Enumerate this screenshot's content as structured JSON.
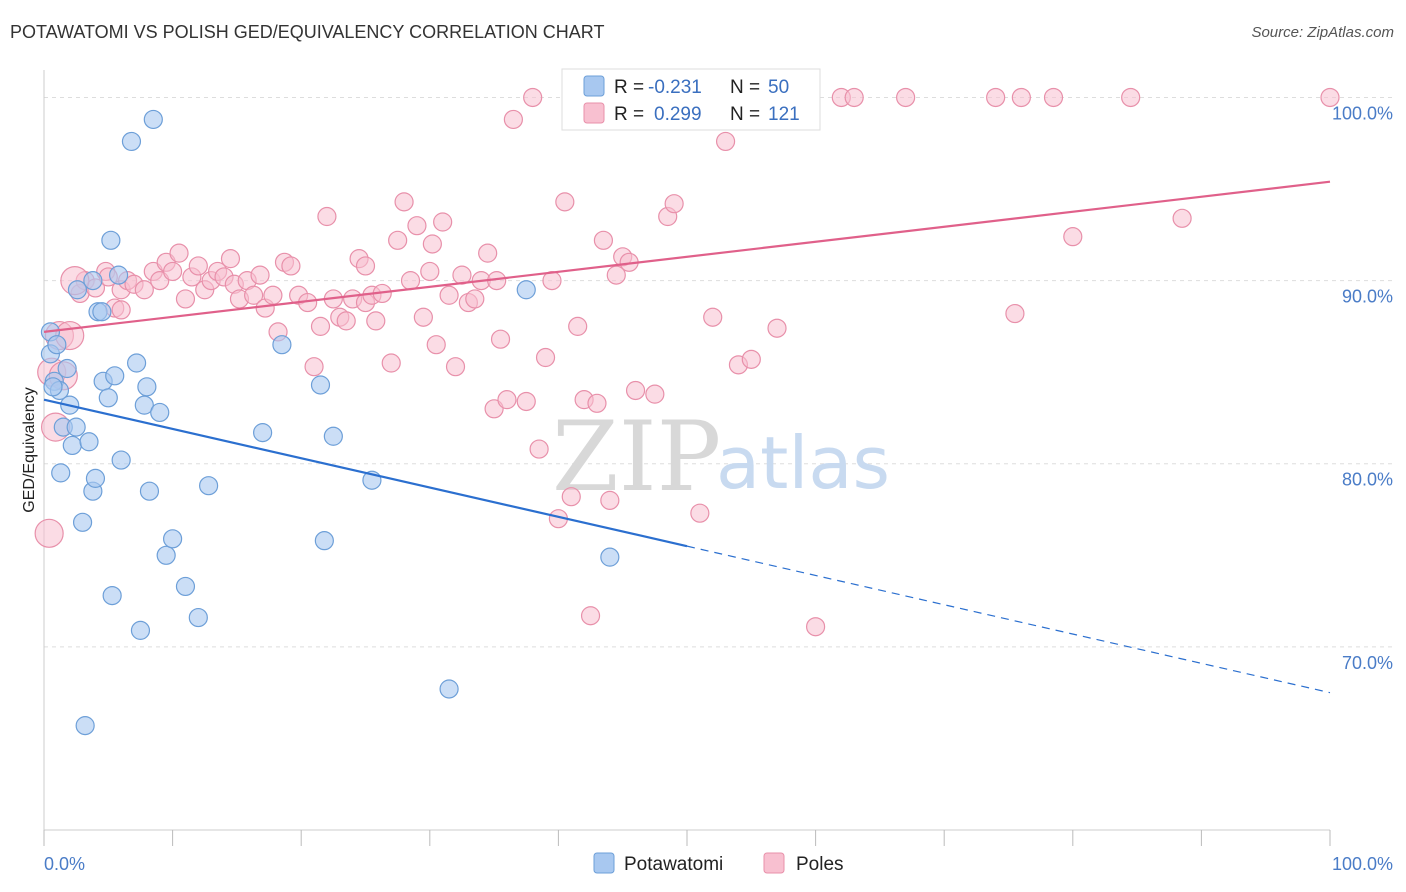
{
  "header": {
    "title": "POTAWATOMI VS POLISH GED/EQUIVALENCY CORRELATION CHART",
    "source": "Source: ZipAtlas.com"
  },
  "watermark": {
    "zip": "ZIP",
    "atlas": "atlas"
  },
  "legend": {
    "rows": [
      {
        "r_label": "R =",
        "r_value": "-0.231",
        "n_label": "N =",
        "n_value": "50",
        "color": "#a8c8f0",
        "stroke": "#6d9fd8"
      },
      {
        "r_label": "R =",
        "r_value": "0.299",
        "n_label": "N =",
        "n_value": "121",
        "color": "#f8c0d0",
        "stroke": "#e890aa"
      }
    ]
  },
  "bottom_legend": [
    {
      "label": "Potawatomi",
      "color": "#a8c8f0",
      "stroke": "#6d9fd8"
    },
    {
      "label": "Poles",
      "color": "#f8c0d0",
      "stroke": "#e890aa"
    }
  ],
  "chart_data": {
    "type": "scatter",
    "xlabel": "",
    "ylabel": "GED/Equivalency",
    "xlim": [
      0,
      100
    ],
    "ylim": [
      60,
      101.5
    ],
    "x_tick_labels": [
      "0.0%",
      "100.0%"
    ],
    "y_ticks": [
      100,
      90,
      80,
      70
    ],
    "y_tick_labels": [
      "100.0%",
      "90.0%",
      "80.0%",
      "70.0%"
    ],
    "grid": true,
    "legend_position": "top-center",
    "series": [
      {
        "name": "Potawatomi",
        "color": "#a8c8f0",
        "stroke": "#6d9fd8",
        "trend": {
          "x0": 0,
          "y0": 83.5,
          "x1": 50,
          "y1": 75.5,
          "dash_to_x": 100,
          "dash_to_y": 67.5,
          "color": "#2b6fcf"
        },
        "points": [
          [
            0.5,
            87.2
          ],
          [
            0.5,
            86.0
          ],
          [
            0.8,
            84.5
          ],
          [
            1.2,
            84.0
          ],
          [
            1.5,
            82.0
          ],
          [
            1.0,
            86.5
          ],
          [
            1.8,
            85.2
          ],
          [
            2.0,
            83.2
          ],
          [
            2.2,
            81.0
          ],
          [
            2.5,
            82.0
          ],
          [
            1.3,
            79.5
          ],
          [
            3.5,
            81.2
          ],
          [
            3.8,
            78.5
          ],
          [
            4.0,
            79.2
          ],
          [
            3.0,
            76.8
          ],
          [
            3.8,
            90.0
          ],
          [
            4.2,
            88.3
          ],
          [
            4.5,
            88.3
          ],
          [
            4.6,
            84.5
          ],
          [
            5.0,
            83.6
          ],
          [
            5.5,
            84.8
          ],
          [
            6.0,
            80.2
          ],
          [
            5.2,
            92.2
          ],
          [
            5.8,
            90.3
          ],
          [
            7.2,
            85.5
          ],
          [
            7.8,
            83.2
          ],
          [
            8.0,
            84.2
          ],
          [
            8.2,
            78.5
          ],
          [
            9.0,
            82.8
          ],
          [
            9.5,
            75.0
          ],
          [
            10.0,
            75.9
          ],
          [
            11.0,
            73.3
          ],
          [
            12.0,
            71.6
          ],
          [
            12.8,
            78.8
          ],
          [
            6.8,
            97.6
          ],
          [
            8.5,
            98.8
          ],
          [
            7.5,
            70.9
          ],
          [
            5.3,
            72.8
          ],
          [
            3.2,
            65.7
          ],
          [
            17.0,
            81.7
          ],
          [
            18.5,
            86.5
          ],
          [
            21.5,
            84.3
          ],
          [
            22.5,
            81.5
          ],
          [
            21.8,
            75.8
          ],
          [
            25.5,
            79.1
          ],
          [
            31.5,
            67.7
          ],
          [
            37.5,
            89.5
          ],
          [
            44.0,
            74.9
          ],
          [
            0.7,
            84.2
          ],
          [
            2.6,
            89.5
          ]
        ]
      },
      {
        "name": "Poles",
        "color": "#f8c0d0",
        "stroke": "#e890aa",
        "trend": {
          "x0": 0,
          "y0": 87.2,
          "x1": 100,
          "y1": 95.4,
          "color": "#e0608a"
        },
        "points": [
          [
            0.4,
            76.2
          ],
          [
            0.6,
            85.0
          ],
          [
            0.9,
            82.0
          ],
          [
            1.2,
            87.0
          ],
          [
            1.5,
            84.8
          ],
          [
            2.0,
            87.0
          ],
          [
            2.8,
            89.3
          ],
          [
            3.2,
            90.0
          ],
          [
            4.0,
            89.6
          ],
          [
            4.8,
            90.5
          ],
          [
            5.0,
            90.2
          ],
          [
            5.5,
            88.5
          ],
          [
            6.0,
            89.5
          ],
          [
            6.5,
            90.0
          ],
          [
            7.0,
            89.8
          ],
          [
            7.8,
            89.5
          ],
          [
            8.5,
            90.5
          ],
          [
            9.0,
            90.0
          ],
          [
            9.5,
            91.0
          ],
          [
            10.0,
            90.5
          ],
          [
            10.5,
            91.5
          ],
          [
            11.0,
            89.0
          ],
          [
            11.5,
            90.2
          ],
          [
            12.0,
            90.8
          ],
          [
            12.5,
            89.5
          ],
          [
            13.0,
            90.0
          ],
          [
            13.5,
            90.5
          ],
          [
            14.0,
            90.2
          ],
          [
            14.5,
            91.2
          ],
          [
            14.8,
            89.8
          ],
          [
            15.2,
            89.0
          ],
          [
            15.8,
            90.0
          ],
          [
            16.3,
            89.2
          ],
          [
            16.8,
            90.3
          ],
          [
            17.2,
            88.5
          ],
          [
            17.8,
            89.2
          ],
          [
            18.2,
            87.2
          ],
          [
            18.7,
            91.0
          ],
          [
            19.2,
            90.8
          ],
          [
            19.8,
            89.2
          ],
          [
            20.5,
            88.8
          ],
          [
            21.0,
            85.3
          ],
          [
            21.5,
            87.5
          ],
          [
            22.0,
            93.5
          ],
          [
            22.5,
            89.0
          ],
          [
            23.0,
            88.0
          ],
          [
            23.5,
            87.8
          ],
          [
            24.0,
            89.0
          ],
          [
            24.5,
            91.2
          ],
          [
            25.0,
            88.8
          ],
          [
            25.5,
            89.2
          ],
          [
            25.8,
            87.8
          ],
          [
            26.3,
            89.3
          ],
          [
            27.0,
            85.5
          ],
          [
            27.5,
            92.2
          ],
          [
            28.0,
            94.3
          ],
          [
            28.5,
            90.0
          ],
          [
            29.0,
            93.0
          ],
          [
            29.5,
            88.0
          ],
          [
            30.0,
            90.5
          ],
          [
            30.5,
            86.5
          ],
          [
            31.0,
            93.2
          ],
          [
            31.5,
            89.2
          ],
          [
            32.0,
            85.3
          ],
          [
            32.5,
            90.3
          ],
          [
            33.0,
            88.8
          ],
          [
            33.5,
            89.0
          ],
          [
            34.0,
            90.0
          ],
          [
            34.5,
            91.5
          ],
          [
            35.0,
            83.0
          ],
          [
            35.5,
            86.8
          ],
          [
            36.0,
            83.5
          ],
          [
            36.5,
            98.8
          ],
          [
            37.5,
            83.4
          ],
          [
            38.0,
            100.0
          ],
          [
            38.5,
            80.8
          ],
          [
            39.0,
            85.8
          ],
          [
            39.5,
            90.0
          ],
          [
            40.0,
            77.0
          ],
          [
            40.5,
            94.3
          ],
          [
            41.0,
            78.2
          ],
          [
            41.5,
            87.5
          ],
          [
            42.0,
            83.5
          ],
          [
            42.5,
            71.7
          ],
          [
            43.0,
            83.3
          ],
          [
            43.5,
            92.2
          ],
          [
            44.0,
            78.0
          ],
          [
            44.5,
            90.3
          ],
          [
            45.0,
            91.3
          ],
          [
            45.5,
            91.0
          ],
          [
            46.0,
            84.0
          ],
          [
            46.5,
            100.0
          ],
          [
            47.0,
            100.0
          ],
          [
            47.5,
            83.8
          ],
          [
            48.0,
            100.0
          ],
          [
            48.5,
            93.5
          ],
          [
            49.0,
            94.2
          ],
          [
            50.0,
            100.0
          ],
          [
            51.0,
            77.3
          ],
          [
            52.0,
            88.0
          ],
          [
            53.0,
            97.6
          ],
          [
            54.0,
            85.4
          ],
          [
            55.0,
            85.7
          ],
          [
            57.0,
            87.4
          ],
          [
            60.0,
            71.1
          ],
          [
            62.0,
            100.0
          ],
          [
            63.0,
            100.0
          ],
          [
            67.0,
            100.0
          ],
          [
            74.0,
            100.0
          ],
          [
            76.0,
            100.0
          ],
          [
            78.5,
            100.0
          ],
          [
            75.5,
            88.2
          ],
          [
            80.0,
            92.4
          ],
          [
            84.5,
            100.0
          ],
          [
            88.5,
            93.4
          ],
          [
            100.0,
            100.0
          ],
          [
            6.0,
            88.4
          ],
          [
            25.0,
            90.8
          ],
          [
            2.4,
            90.0
          ],
          [
            35.2,
            90.0
          ],
          [
            30.2,
            92.0
          ]
        ]
      }
    ]
  }
}
